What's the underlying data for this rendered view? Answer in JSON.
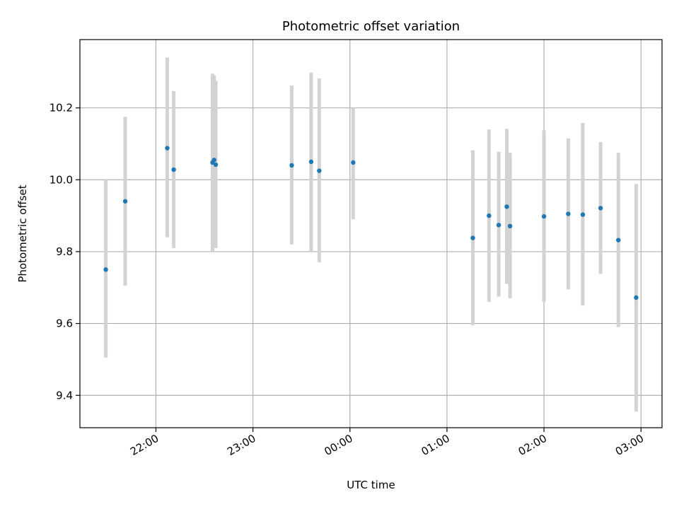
{
  "chart_data": {
    "type": "scatter",
    "title": "Photometric offset variation",
    "xlabel": "UTC time",
    "ylabel": "Photometric offset",
    "x_ticks": [
      "22:00",
      "23:00",
      "00:00",
      "01:00",
      "02:00",
      "03:00"
    ],
    "y_ticks": [
      "9.4",
      "9.6",
      "9.8",
      "10.0",
      "10.2"
    ],
    "x_ticks_value": [
      "22:00",
      "23:00",
      "00:00",
      "01:00",
      "02:00",
      "03:00"
    ],
    "y_ticks_value": [
      9.4,
      9.6,
      9.8,
      10.0,
      10.2
    ],
    "xlim": [
      "21:13",
      "03:13"
    ],
    "ylim": [
      9.31,
      10.39
    ],
    "grid": true,
    "marker_color": "#1f77b4",
    "errorbar_color": "#d3d3d3",
    "points": [
      {
        "time": "21:29",
        "y": 9.75,
        "err_low": 9.505,
        "err_high": 10.0
      },
      {
        "time": "21:41",
        "y": 9.94,
        "err_low": 9.705,
        "err_high": 10.175
      },
      {
        "time": "22:07",
        "y": 10.088,
        "err_low": 9.84,
        "err_high": 10.34
      },
      {
        "time": "22:11",
        "y": 10.028,
        "err_low": 9.81,
        "err_high": 10.247
      },
      {
        "time": "22:35",
        "y": 10.048,
        "err_low": 9.8,
        "err_high": 10.295
      },
      {
        "time": "22:36",
        "y": 10.055,
        "err_low": 9.81,
        "err_high": 10.29
      },
      {
        "time": "22:37",
        "y": 10.042,
        "err_low": 9.81,
        "err_high": 10.275
      },
      {
        "time": "23:24",
        "y": 10.04,
        "err_low": 9.82,
        "err_high": 10.262
      },
      {
        "time": "23:36",
        "y": 10.05,
        "err_low": 9.8,
        "err_high": 10.298
      },
      {
        "time": "23:41",
        "y": 10.025,
        "err_low": 9.77,
        "err_high": 10.282
      },
      {
        "time": "00:02",
        "y": 10.048,
        "err_low": 9.89,
        "err_high": 10.2
      },
      {
        "time": "01:16",
        "y": 9.838,
        "err_low": 9.595,
        "err_high": 10.082
      },
      {
        "time": "01:26",
        "y": 9.9,
        "err_low": 9.66,
        "err_high": 10.14
      },
      {
        "time": "01:32",
        "y": 9.874,
        "err_low": 9.675,
        "err_high": 10.078
      },
      {
        "time": "01:37",
        "y": 9.925,
        "err_low": 9.71,
        "err_high": 10.142
      },
      {
        "time": "01:39",
        "y": 9.871,
        "err_low": 9.67,
        "err_high": 10.075
      },
      {
        "time": "02:00",
        "y": 9.898,
        "err_low": 9.66,
        "err_high": 10.138
      },
      {
        "time": "02:15",
        "y": 9.905,
        "err_low": 9.695,
        "err_high": 10.115
      },
      {
        "time": "02:24",
        "y": 9.903,
        "err_low": 9.65,
        "err_high": 10.158
      },
      {
        "time": "02:35",
        "y": 9.921,
        "err_low": 9.738,
        "err_high": 10.105
      },
      {
        "time": "02:46",
        "y": 9.832,
        "err_low": 9.59,
        "err_high": 10.075
      },
      {
        "time": "02:57",
        "y": 9.672,
        "err_low": 9.355,
        "err_high": 9.988
      }
    ]
  }
}
